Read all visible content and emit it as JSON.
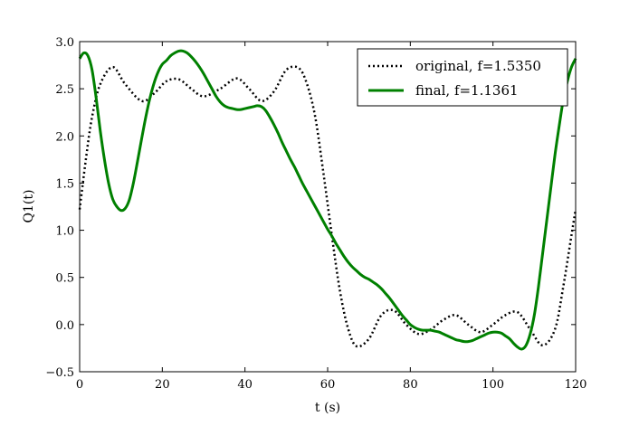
{
  "chart_data": {
    "type": "line",
    "title": "",
    "xlabel": "t (s)",
    "ylabel": "Q1(t)",
    "xlim": [
      0,
      120
    ],
    "ylim": [
      -0.5,
      3.0
    ],
    "xticks": [
      0,
      20,
      40,
      60,
      80,
      100,
      120
    ],
    "xtick_labels": [
      "0",
      "20",
      "40",
      "60",
      "80",
      "100",
      "120"
    ],
    "yticks": [
      -0.5,
      0.0,
      0.5,
      1.0,
      1.5,
      2.0,
      2.5,
      3.0
    ],
    "ytick_labels": [
      "−0.5",
      "0.0",
      "0.5",
      "1.0",
      "1.5",
      "2.0",
      "2.5",
      "3.0"
    ],
    "grid": false,
    "legend_position": "top-right",
    "series": [
      {
        "name": "original, f=1.5350",
        "color": "#000000",
        "style": "dotted",
        "x": [
          0,
          1.5,
          3,
          5,
          8,
          11,
          15,
          18,
          21,
          24,
          27,
          30,
          34,
          38,
          41,
          44,
          47,
          50,
          53,
          55,
          57,
          59,
          61,
          63,
          65,
          67,
          70,
          73,
          76,
          79,
          82,
          85,
          88,
          91,
          94,
          97,
          100,
          103,
          106,
          109,
          112,
          115,
          117,
          119,
          120
        ],
        "y": [
          1.22,
          1.75,
          2.2,
          2.55,
          2.73,
          2.55,
          2.37,
          2.45,
          2.58,
          2.6,
          2.5,
          2.42,
          2.5,
          2.61,
          2.5,
          2.37,
          2.47,
          2.7,
          2.72,
          2.55,
          2.2,
          1.6,
          0.95,
          0.35,
          -0.05,
          -0.23,
          -0.15,
          0.1,
          0.15,
          0.0,
          -0.1,
          -0.05,
          0.05,
          0.1,
          0.0,
          -0.08,
          0.0,
          0.1,
          0.13,
          -0.05,
          -0.22,
          -0.05,
          0.4,
          0.95,
          1.22
        ]
      },
      {
        "name": "final, f=1.1361",
        "color": "#008000",
        "style": "solid",
        "x": [
          0,
          1,
          2,
          3,
          4,
          5,
          6,
          7,
          8,
          9,
          10,
          11,
          12,
          13,
          14,
          15,
          16,
          17,
          18,
          19,
          20,
          21,
          22,
          23,
          24,
          25,
          26,
          27,
          28,
          29,
          30,
          31,
          32,
          33,
          34,
          35,
          36,
          37,
          38,
          39,
          40,
          41,
          42,
          43,
          44,
          45,
          46,
          47,
          48,
          49,
          50,
          51,
          52,
          53,
          54,
          55,
          56,
          57,
          58,
          59,
          60,
          61,
          62,
          63,
          64,
          65,
          66,
          67,
          68,
          69,
          70,
          71,
          72,
          73,
          74,
          75,
          76,
          77,
          78,
          79,
          80,
          81,
          82,
          83,
          84,
          85,
          86,
          87,
          88,
          89,
          90,
          91,
          92,
          93,
          94,
          95,
          96,
          97,
          98,
          99,
          100,
          101,
          102,
          103,
          104,
          105,
          106,
          107,
          108,
          109,
          110,
          111,
          112,
          113,
          114,
          115,
          116,
          117,
          118,
          119,
          120
        ],
        "y": [
          2.82,
          2.88,
          2.85,
          2.7,
          2.4,
          2.05,
          1.75,
          1.5,
          1.33,
          1.25,
          1.21,
          1.23,
          1.32,
          1.5,
          1.73,
          1.97,
          2.2,
          2.4,
          2.56,
          2.68,
          2.76,
          2.8,
          2.85,
          2.88,
          2.9,
          2.9,
          2.88,
          2.84,
          2.79,
          2.73,
          2.66,
          2.58,
          2.5,
          2.42,
          2.36,
          2.32,
          2.3,
          2.29,
          2.28,
          2.28,
          2.29,
          2.3,
          2.31,
          2.32,
          2.31,
          2.27,
          2.2,
          2.12,
          2.03,
          1.93,
          1.84,
          1.75,
          1.67,
          1.58,
          1.49,
          1.41,
          1.33,
          1.25,
          1.17,
          1.09,
          1.01,
          0.94,
          0.86,
          0.79,
          0.72,
          0.66,
          0.61,
          0.57,
          0.53,
          0.5,
          0.48,
          0.45,
          0.42,
          0.38,
          0.33,
          0.28,
          0.22,
          0.16,
          0.1,
          0.05,
          0.0,
          -0.03,
          -0.05,
          -0.06,
          -0.06,
          -0.06,
          -0.07,
          -0.08,
          -0.1,
          -0.12,
          -0.14,
          -0.16,
          -0.17,
          -0.18,
          -0.18,
          -0.17,
          -0.15,
          -0.13,
          -0.11,
          -0.09,
          -0.08,
          -0.08,
          -0.09,
          -0.12,
          -0.15,
          -0.2,
          -0.24,
          -0.26,
          -0.22,
          -0.1,
          0.1,
          0.4,
          0.75,
          1.1,
          1.45,
          1.8,
          2.1,
          2.38,
          2.58,
          2.73,
          2.82
        ]
      }
    ]
  }
}
